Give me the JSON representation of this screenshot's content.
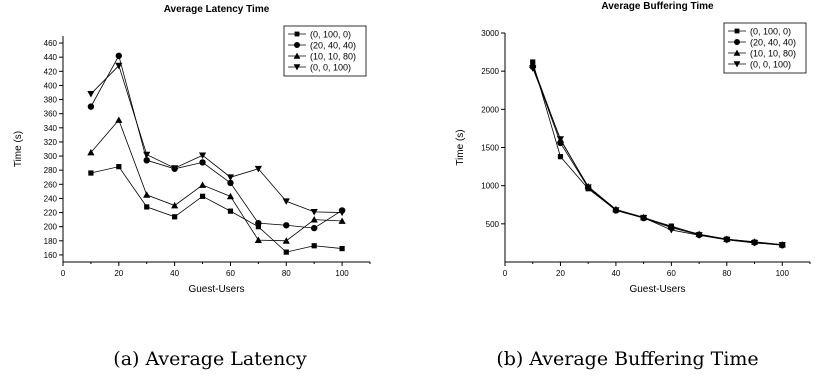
{
  "charts": [
    {
      "caption_label": "(a)",
      "caption_text": "Average Latency",
      "chart_data": {
        "type": "line",
        "title": "Average Latency Time",
        "xlabel": "Guest-Users",
        "ylabel": "Time (s)",
        "xlim": [
          0,
          110
        ],
        "ylim": [
          150,
          470
        ],
        "xticks": [
          0,
          20,
          40,
          60,
          80,
          100
        ],
        "yticks": [
          160,
          180,
          200,
          220,
          240,
          260,
          280,
          300,
          320,
          340,
          360,
          380,
          400,
          420,
          440,
          460
        ],
        "legend_position": "top-right",
        "x": [
          10,
          20,
          30,
          40,
          50,
          60,
          70,
          80,
          90,
          100
        ],
        "series": [
          {
            "name": "(0, 100, 0)",
            "marker": "square",
            "values": [
              276,
              285,
              228,
              214,
              243,
              222,
              200,
              164,
              173,
              169
            ]
          },
          {
            "name": "(20, 40, 40)",
            "marker": "circle",
            "values": [
              370,
              442,
              294,
              282,
              291,
              262,
              205,
              202,
              198,
              223
            ]
          },
          {
            "name": "(10, 10, 80)",
            "marker": "triangle-up",
            "values": [
              305,
              351,
              245,
              230,
              259,
              243,
              181,
              180,
              210,
              208
            ]
          },
          {
            "name": "(0, 0, 100)",
            "marker": "triangle-down",
            "values": [
              388,
              428,
              302,
              283,
              301,
              270,
              282,
              236,
              221,
              220
            ]
          }
        ]
      }
    },
    {
      "caption_label": "(b)",
      "caption_text": "Average Buffering Time",
      "chart_data": {
        "type": "line",
        "title": "Average Buffering Time",
        "xlabel": "Guest-Users",
        "ylabel": "Time (s)",
        "xlim": [
          0,
          110
        ],
        "ylim": [
          0,
          3000
        ],
        "xticks": [
          0,
          20,
          40,
          60,
          80,
          100
        ],
        "yticks": [
          500,
          1000,
          1500,
          2000,
          2500,
          3000
        ],
        "legend_position": "top-right",
        "x": [
          10,
          20,
          30,
          40,
          50,
          60,
          70,
          80,
          90,
          100
        ],
        "series": [
          {
            "name": "(0, 100, 0)",
            "marker": "square",
            "values": [
              2620,
              1380,
              960,
              680,
              580,
              470,
              360,
              300,
              260,
              225
            ]
          },
          {
            "name": "(20, 40, 40)",
            "marker": "circle",
            "values": [
              2560,
              1560,
              975,
              675,
              575,
              450,
              355,
              295,
              255,
              220
            ]
          },
          {
            "name": "(10, 10, 80)",
            "marker": "triangle-up",
            "values": [
              2580,
              1600,
              990,
              690,
              585,
              460,
              365,
              300,
              265,
              228
            ]
          },
          {
            "name": "(0, 0, 100)",
            "marker": "triangle-down",
            "values": [
              2540,
              1610,
              980,
              680,
              580,
              420,
              350,
              290,
              250,
              222
            ]
          }
        ]
      }
    }
  ]
}
